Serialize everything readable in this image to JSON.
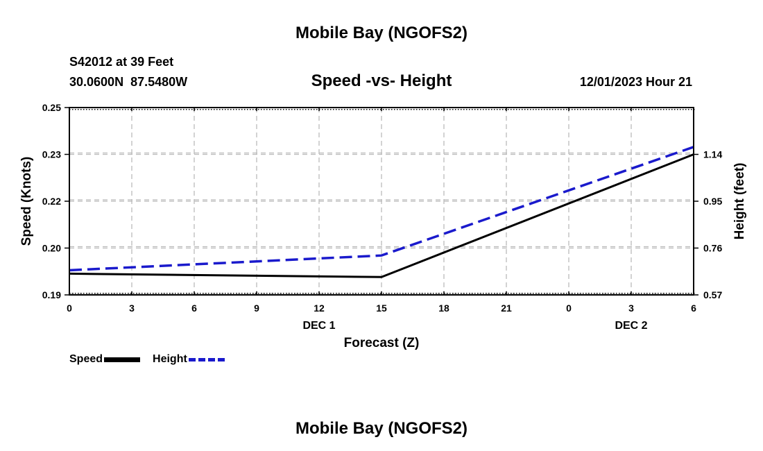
{
  "page_title_top": "Mobile Bay (NGOFS2)",
  "page_title_bottom": "Mobile Bay (NGOFS2)",
  "station_line": "S42012 at 39 Feet",
  "coords_line": "30.0600N  87.5480W",
  "datetime": "12/01/2023 Hour 21",
  "colors": {
    "speed": "#000000",
    "height": "#1a1acc",
    "grid": "#bbbbbb"
  },
  "chart_data": {
    "type": "line",
    "title": "Speed -vs- Height",
    "xlabel": "Forecast (Z)",
    "ylabel": "Speed (Knots)",
    "ylabel_right": "Height (feet)",
    "x_ticks": [
      "0",
      "3",
      "6",
      "9",
      "12",
      "15",
      "18",
      "21",
      "0",
      "3",
      "6"
    ],
    "x_day_labels": [
      {
        "label": "DEC 1",
        "at_tick": 4
      },
      {
        "label": "DEC 2",
        "at_tick": 9
      }
    ],
    "x": [
      0,
      15,
      30
    ],
    "ylim": [
      0.19,
      0.25
    ],
    "y_ticks": [
      "0.19",
      "0.20",
      "0.22",
      "0.23",
      "0.25"
    ],
    "y_tick_values": [
      0.19,
      0.205,
      0.22,
      0.235,
      0.25
    ],
    "ylim_right": [
      0.57,
      1.33
    ],
    "y2_ticks": [
      "0.57",
      "0.76",
      "0.95",
      "1.14"
    ],
    "y2_tick_values": [
      0.57,
      0.76,
      0.95,
      1.14
    ],
    "series": [
      {
        "name": "Speed",
        "axis": "left",
        "style": "solid",
        "x": [
          0,
          15,
          30
        ],
        "values": [
          0.1968,
          0.1957,
          0.235
        ]
      },
      {
        "name": "Height",
        "axis": "right",
        "style": "dashed",
        "x": [
          0,
          15,
          30
        ],
        "values": [
          0.67,
          0.73,
          1.17
        ]
      }
    ]
  }
}
